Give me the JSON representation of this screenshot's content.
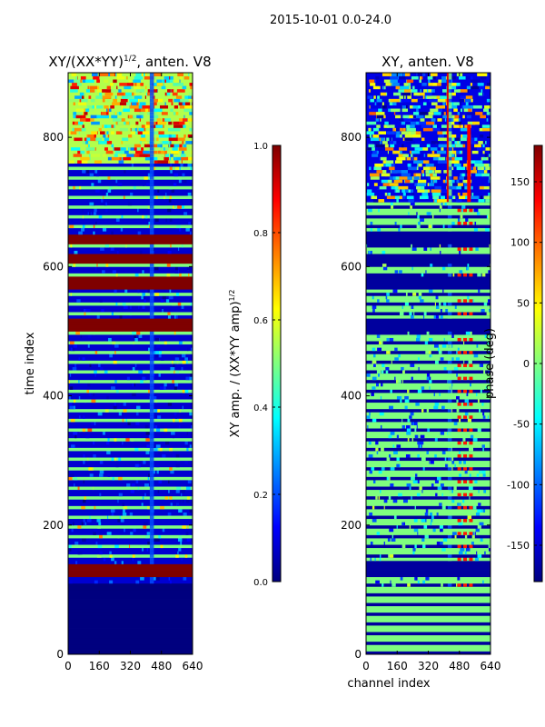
{
  "suptitle": "2015-10-01 0.0-24.0",
  "colormap_stops": [
    "#00007f",
    "#0000ff",
    "#007fff",
    "#00ffff",
    "#7fff7f",
    "#ffff00",
    "#ff7f00",
    "#ff0000",
    "#7f0000"
  ],
  "chart_data": [
    {
      "type": "heatmap",
      "panel": "amplitude",
      "title": "XY/(XX*YY)",
      "title_sup": "1/2",
      "title_suffix": ", anten. V8",
      "xlabel": "",
      "ylabel": "time index",
      "xlim": [
        0,
        640
      ],
      "ylim": [
        0,
        900
      ],
      "xticks": [
        "0",
        "160",
        "320",
        "480",
        "640"
      ],
      "yticks": [
        "0",
        "200",
        "400",
        "600",
        "800"
      ],
      "colorbar": {
        "label": "XY amp. / (XX*YY amp)",
        "label_sup": "1/2",
        "range": [
          0.0,
          1.0
        ],
        "ticks": [
          "0.0",
          "0.2",
          "0.4",
          "0.6",
          "0.8",
          "1.0"
        ]
      },
      "bands": [
        {
          "y0": 0,
          "y1": 110,
          "level": 0.0
        },
        {
          "y0": 120,
          "y1": 140,
          "level": 1.0
        },
        {
          "y0": 500,
          "y1": 520,
          "level": 1.0
        },
        {
          "y0": 565,
          "y1": 585,
          "level": 1.0
        },
        {
          "y0": 605,
          "y1": 620,
          "level": 1.0
        },
        {
          "y0": 635,
          "y1": 650,
          "level": 1.0
        }
      ],
      "base_level": 0.08,
      "stripe_level": 0.5,
      "top_zone": {
        "y0": 760,
        "level": 0.55
      }
    },
    {
      "type": "heatmap",
      "panel": "phase",
      "title": "XY, anten. V8",
      "xlabel": "channel index",
      "ylabel": "",
      "xlim": [
        0,
        640
      ],
      "ylim": [
        0,
        900
      ],
      "xticks": [
        "0",
        "160",
        "320",
        "480",
        "640"
      ],
      "yticks": [
        "0",
        "200",
        "400",
        "600",
        "800"
      ],
      "colorbar": {
        "label": "phase (deg)",
        "range": [
          -180,
          180
        ],
        "ticks": [
          "-150",
          "-100",
          "-50",
          "0",
          "50",
          "100",
          "150"
        ]
      },
      "bands": [
        {
          "y0": 120,
          "y1": 145,
          "level": 0.03
        },
        {
          "y0": 500,
          "y1": 520,
          "level": 0.03
        },
        {
          "y0": 565,
          "y1": 585,
          "level": 0.03
        },
        {
          "y0": 605,
          "y1": 620,
          "level": 0.03
        },
        {
          "y0": 635,
          "y1": 655,
          "level": 0.03
        }
      ],
      "base_level": 0.5,
      "stripe_level": 0.03,
      "top_zone": {
        "y0": 700,
        "level": 0.1
      }
    }
  ]
}
